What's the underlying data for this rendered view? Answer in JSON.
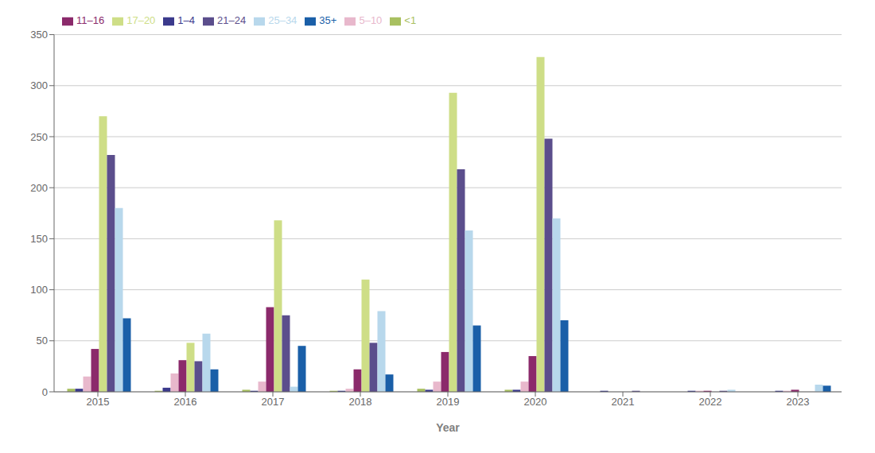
{
  "chart_data": {
    "type": "bar",
    "categories": [
      "2015",
      "2016",
      "2017",
      "2018",
      "2019",
      "2020",
      "2021",
      "2022",
      "2023"
    ],
    "series": [
      {
        "name": "<1",
        "color": "#a8c060",
        "values": [
          3,
          1,
          2,
          1,
          3,
          2,
          0,
          0,
          0
        ]
      },
      {
        "name": "1–4",
        "color": "#3b3a8c",
        "values": [
          3,
          4,
          1,
          1,
          2,
          2,
          1,
          1,
          1
        ]
      },
      {
        "name": "5–10",
        "color": "#e8b8cc",
        "values": [
          15,
          18,
          10,
          3,
          10,
          10,
          0,
          1,
          1
        ]
      },
      {
        "name": "11–16",
        "color": "#8b2a6b",
        "values": [
          42,
          31,
          83,
          22,
          39,
          35,
          0,
          1,
          2
        ]
      },
      {
        "name": "17–20",
        "color": "#cede87",
        "values": [
          270,
          48,
          168,
          110,
          293,
          328,
          0,
          0,
          0
        ]
      },
      {
        "name": "21–24",
        "color": "#5b4e8c",
        "values": [
          232,
          30,
          75,
          48,
          218,
          248,
          1,
          1,
          0
        ]
      },
      {
        "name": "25–34",
        "color": "#b8d8ec",
        "values": [
          180,
          57,
          5,
          79,
          158,
          170,
          0,
          2,
          7
        ]
      },
      {
        "name": "35+",
        "color": "#1a5fa8",
        "values": [
          72,
          22,
          45,
          17,
          65,
          70,
          0,
          0,
          6
        ]
      }
    ],
    "xlabel": "Year",
    "ylim": [
      0,
      350
    ],
    "yticks": [
      0,
      50,
      100,
      150,
      200,
      250,
      300,
      350
    ],
    "grid": true,
    "legend": "upper left"
  }
}
